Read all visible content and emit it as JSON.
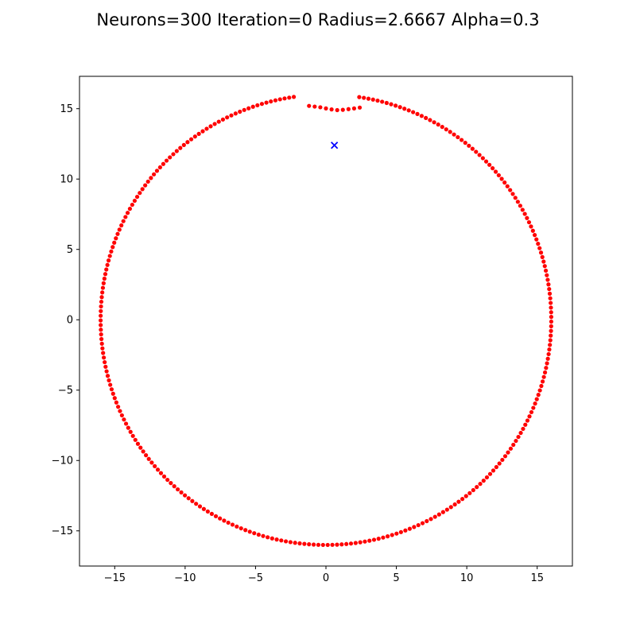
{
  "chart_data": {
    "type": "scatter",
    "title": "Neurons=300 Iteration=0 Radius=2.6667 Alpha=0.3",
    "xlabel": "",
    "ylabel": "",
    "xlim": [
      -17.5,
      17.5
    ],
    "ylim": [
      -17.5,
      17.3
    ],
    "grid": false,
    "x_ticks": [
      {
        "value": -15,
        "label": "−15"
      },
      {
        "value": -10,
        "label": "−10"
      },
      {
        "value": -5,
        "label": "−5"
      },
      {
        "value": 0,
        "label": "0"
      },
      {
        "value": 5,
        "label": "5"
      },
      {
        "value": 10,
        "label": "10"
      },
      {
        "value": 15,
        "label": "15"
      }
    ],
    "y_ticks": [
      {
        "value": 15,
        "label": "15"
      },
      {
        "value": 10,
        "label": "10"
      },
      {
        "value": 5,
        "label": "5"
      },
      {
        "value": 0,
        "label": "0"
      },
      {
        "value": -5,
        "label": "−5"
      },
      {
        "value": -10,
        "label": "−10"
      },
      {
        "value": -15,
        "label": "−15"
      }
    ],
    "series": [
      {
        "marker": "dot",
        "color": "#ff0000",
        "count": 300,
        "shape": "ring of neurons, radius 16, centered at origin; a short dip near the top",
        "gaps_between_deg": [
          [
            95.0,
            98.2
          ],
          [
            81.5,
            84.5
          ]
        ],
        "dip_segment": {
          "x": [
            -1.2,
            -0.8,
            -0.4,
            0.0,
            0.4,
            0.8,
            1.2,
            1.6,
            2.0,
            2.4
          ],
          "y": [
            15.2,
            15.15,
            15.1,
            15.02,
            14.95,
            14.9,
            14.92,
            14.97,
            15.02,
            15.08
          ]
        }
      },
      {
        "marker": "x",
        "color": "#0000ff",
        "points": [
          {
            "x": 0.6,
            "y": 12.4
          }
        ]
      }
    ]
  }
}
